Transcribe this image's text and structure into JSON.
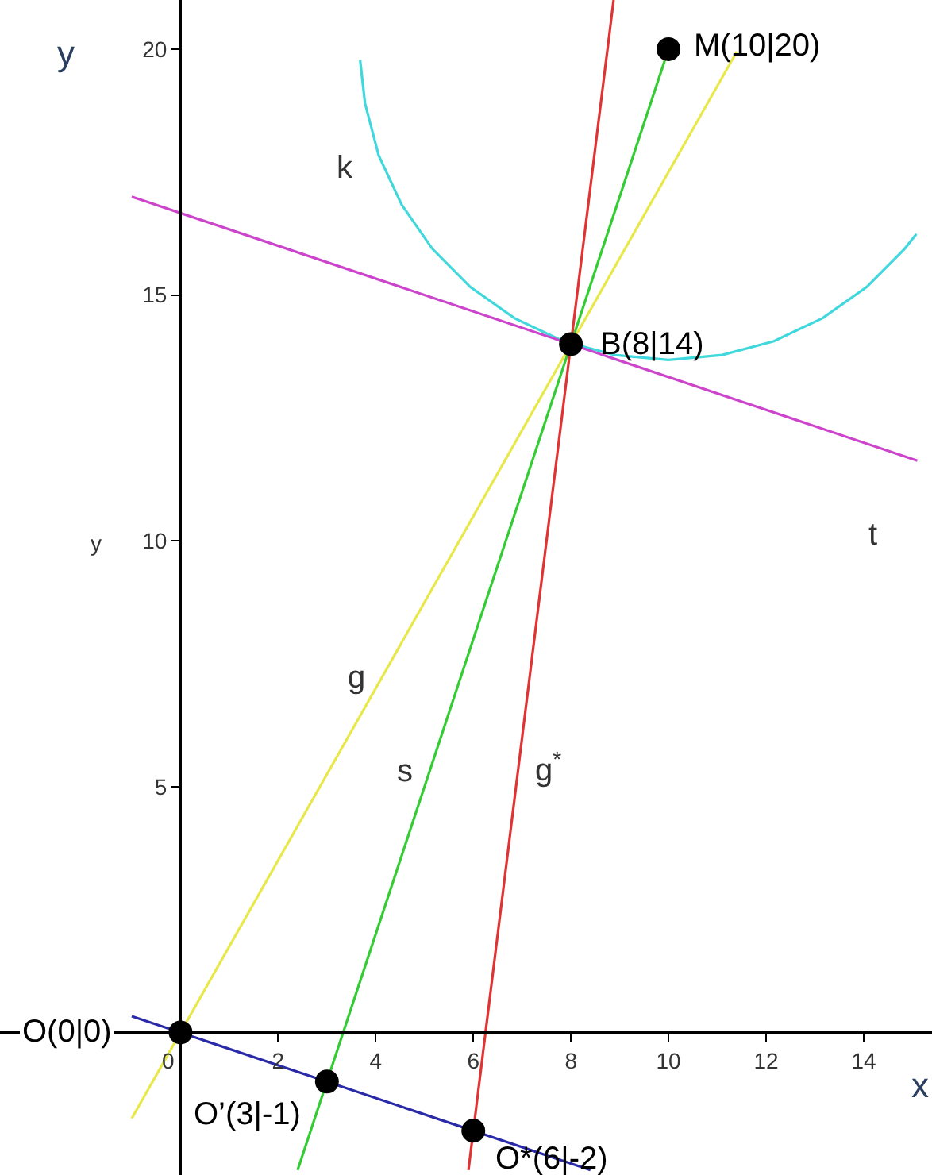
{
  "chart_data": {
    "type": "line",
    "xlabel": "x",
    "ylabel": "y",
    "xlim": [
      -3.7,
      15.4
    ],
    "ylim": [
      -2.9,
      21
    ],
    "xticks": [
      0,
      2,
      4,
      6,
      8,
      10,
      12,
      14
    ],
    "yticks": [
      5,
      10,
      15,
      20
    ],
    "series": [
      {
        "color": "#40d8dc",
        "x": [
          3.68,
          3.78,
          4.06,
          4.53,
          5.16,
          5.94,
          6.84,
          7.84,
          8.9,
          10,
          11.1,
          12.16,
          13.16,
          14.06,
          14.84,
          15.08
        ],
        "values": [
          19.78,
          18.9,
          17.84,
          16.84,
          15.94,
          15.16,
          14.53,
          14.06,
          13.78,
          13.68,
          13.78,
          14.06,
          14.53,
          15.16,
          15.94,
          16.24
        ]
      },
      {
        "color": "#cc44cc",
        "x": [
          -1,
          15.1
        ],
        "values": [
          17,
          11.63
        ]
      },
      {
        "color": "#e8e84a",
        "x": [
          -1,
          11.4
        ],
        "values": [
          -1.75,
          19.95
        ]
      },
      {
        "color": "#33cc33",
        "x": [
          2.4,
          10
        ],
        "values": [
          -2.8,
          20
        ]
      },
      {
        "color": "#e03333",
        "x": [
          5.9,
          8.875
        ],
        "values": [
          -2.8,
          21
        ]
      },
      {
        "color": "#2a2aa8",
        "x": [
          -1,
          8.4
        ],
        "values": [
          0.33,
          -2.8
        ]
      },
      {
        "type": "scatter",
        "marker": "circle",
        "color": "#000000",
        "x": [
          0,
          3,
          6,
          8,
          10
        ],
        "values": [
          0,
          -1,
          -2,
          14,
          20
        ]
      }
    ],
    "annotations": [
      {
        "text": "M(10|20)",
        "x": 10,
        "y": 20
      },
      {
        "text": "B(8|14)",
        "x": 8,
        "y": 14
      },
      {
        "text": "O(0|0)",
        "x": 0,
        "y": 0
      },
      {
        "text": "O’(3|-1)",
        "x": 3,
        "y": -1
      },
      {
        "text": "O*(6|-2)",
        "x": 6,
        "y": -2
      },
      "k",
      "t",
      "g",
      "s",
      "g$^{*}$",
      "y"
    ]
  }
}
